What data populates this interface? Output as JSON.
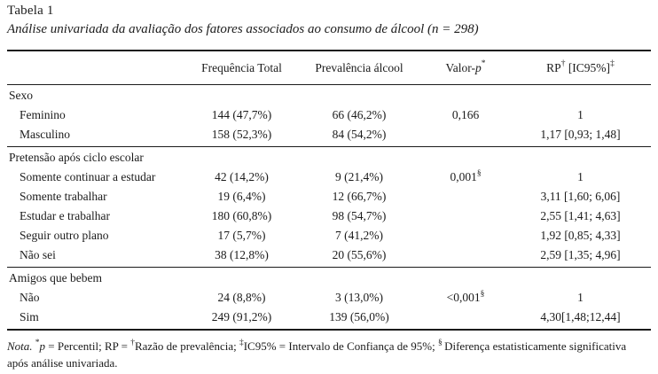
{
  "title": "Tabela 1",
  "subtitle": "Análise univariada da avaliação dos fatores associados ao consumo de álcool (n = 298)",
  "table": {
    "headers": {
      "freq": "Frequência Total",
      "prev": "Prevalência álcool",
      "valor_base": "Valor-",
      "valor_italic": "p",
      "valor_sup": "*",
      "rp_base": "RP",
      "rp_sup1": "†",
      "rp_mid": " [IC95%]",
      "rp_sup2": "‡"
    },
    "sections": [
      {
        "name": "Sexo",
        "rows": [
          {
            "label": "Feminino",
            "freq": "144 (47,7%)",
            "prev": "66 (46,2%)",
            "valor": "0,166",
            "valor_sup": "",
            "rp": "1"
          },
          {
            "label": "Masculino",
            "freq": "158 (52,3%)",
            "prev": "84 (54,2%)",
            "valor": "",
            "valor_sup": "",
            "rp": "1,17 [0,93; 1,48]"
          }
        ]
      },
      {
        "name": "Pretensão após ciclo escolar",
        "rows": [
          {
            "label": "Somente continuar a estudar",
            "freq": "42 (14,2%)",
            "prev": "9 (21,4%)",
            "valor": "0,001",
            "valor_sup": "§",
            "rp": "1"
          },
          {
            "label": "Somente trabalhar",
            "freq": "19 (6,4%)",
            "prev": "12 (66,7%)",
            "valor": "",
            "valor_sup": "",
            "rp": "3,11 [1,60; 6,06]"
          },
          {
            "label": "Estudar e trabalhar",
            "freq": "180 (60,8%)",
            "prev": "98 (54,7%)",
            "valor": "",
            "valor_sup": "",
            "rp": "2,55 [1,41; 4,63]"
          },
          {
            "label": "Seguir outro plano",
            "freq": "17 (5,7%)",
            "prev": "7 (41,2%)",
            "valor": "",
            "valor_sup": "",
            "rp": "1,92 [0,85; 4,33]"
          },
          {
            "label": "Não sei",
            "freq": "38 (12,8%)",
            "prev": "20 (55,6%)",
            "valor": "",
            "valor_sup": "",
            "rp": "2,59 [1,35; 4,96]"
          }
        ]
      },
      {
        "name": "Amigos que bebem",
        "rows": [
          {
            "label": "Não",
            "freq": "24 (8,8%)",
            "prev": "3 (13,0%)",
            "valor": "<0,001",
            "valor_sup": "§",
            "rp": "1"
          },
          {
            "label": "Sim",
            "freq": "249 (91,2%)",
            "prev": "139 (56,0%)",
            "valor": "",
            "valor_sup": "",
            "rp": "4,30[1,48;12,44]"
          }
        ]
      }
    ]
  },
  "note": {
    "parts": [
      {
        "style": "italic",
        "text": "Nota. "
      },
      {
        "style": "sup",
        "text": "*"
      },
      {
        "style": "italic",
        "text": "p"
      },
      {
        "style": "normal",
        "text": " = Percentil; RP = "
      },
      {
        "style": "sup",
        "text": "†"
      },
      {
        "style": "normal",
        "text": "Razão de prevalência; "
      },
      {
        "style": "sup",
        "text": "‡"
      },
      {
        "style": "normal",
        "text": "IC95% = Intervalo de Confiança de 95%; "
      },
      {
        "style": "sup",
        "text": "§ "
      },
      {
        "style": "normal",
        "text": "Diferença estatisticamente significativa após análise univariada."
      }
    ]
  }
}
